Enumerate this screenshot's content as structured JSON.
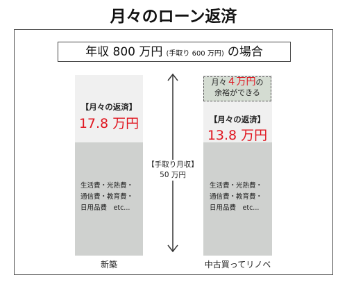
{
  "title": "月々のローン返済",
  "income_box": {
    "main": "年収 800 万円",
    "net": "(手取り 600 万円)",
    "suffix": "の場合"
  },
  "arrow": {
    "heading": "【手取り月収】",
    "amount": "50 万円"
  },
  "columns": [
    {
      "label": "新築",
      "payment_heading": "【月々の返済】",
      "payment_amount": "17.8 万円",
      "expenses": [
        "生活費・光熱費・",
        "通信費・教育費・",
        "日用品費　etc..."
      ]
    },
    {
      "label": "中古買ってリノベ",
      "payment_heading": "【月々の返済】",
      "payment_amount": "13.8 万円",
      "note": {
        "prefix": "月々",
        "amount": "４万円",
        "particle": "の",
        "line2": "余裕ができる"
      },
      "expenses": [
        "生活費・光熱費・",
        "通信費・教育費・",
        "日用品費　etc..."
      ]
    }
  ]
}
